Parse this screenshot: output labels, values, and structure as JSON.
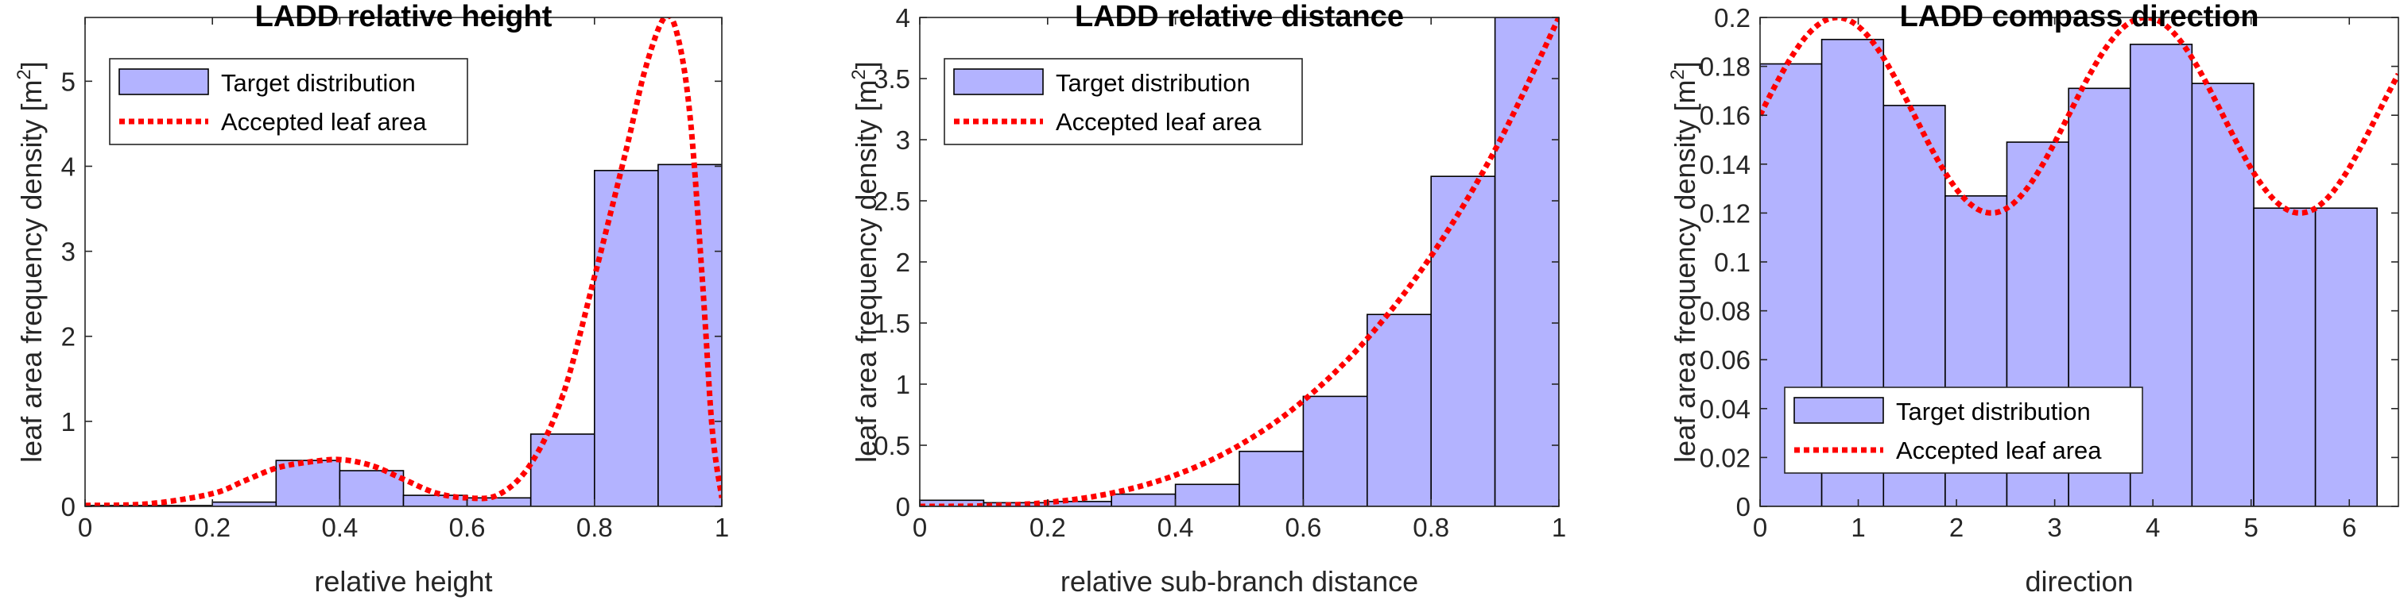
{
  "chart_data": [
    {
      "type": "bar",
      "title": "LADD relative height",
      "xlabel": "relative height",
      "ylabel": "leaf area frequency density [m",
      "ylabel_sup": "2",
      "ylabel_close": "]",
      "xlim": [
        0,
        1
      ],
      "ylim": [
        0,
        5.75
      ],
      "xticks": [
        0,
        0.2,
        0.4,
        0.6,
        0.8,
        1
      ],
      "xtick_labels": [
        "0",
        "0.2",
        "0.4",
        "0.6",
        "0.8",
        "1"
      ],
      "yticks": [
        0,
        1,
        2,
        3,
        4,
        5
      ],
      "ytick_labels": [
        "0",
        "1",
        "2",
        "3",
        "4",
        "5"
      ],
      "legend_position": "top-left",
      "bin_edges": [
        0,
        0.1,
        0.2,
        0.3,
        0.4,
        0.5,
        0.6,
        0.7,
        0.8,
        0.9,
        1.0
      ],
      "series": [
        {
          "name": "Target distribution",
          "kind": "histogram",
          "color": "#b3b3ff",
          "values": [
            0.01,
            0.01,
            0.05,
            0.54,
            0.42,
            0.13,
            0.1,
            0.85,
            3.95,
            4.02
          ]
        },
        {
          "name": "Accepted leaf area",
          "kind": "dotted-line",
          "color": "#ff0000",
          "x": [
            0,
            0.1,
            0.2,
            0.25,
            0.3,
            0.35,
            0.4,
            0.45,
            0.5,
            0.55,
            0.6,
            0.65,
            0.7,
            0.75,
            0.8,
            0.85,
            0.88,
            0.91,
            0.93,
            0.95,
            0.97,
            0.985,
            1.0
          ],
          "y": [
            0.01,
            0.03,
            0.15,
            0.3,
            0.45,
            0.52,
            0.55,
            0.48,
            0.32,
            0.16,
            0.1,
            0.14,
            0.5,
            1.3,
            2.7,
            4.2,
            5.15,
            5.75,
            5.55,
            4.6,
            2.6,
            0.9,
            0.1
          ]
        }
      ]
    },
    {
      "type": "bar",
      "title": "LADD relative distance",
      "xlabel": "relative sub-branch distance",
      "ylabel": "leaf area frequency density [m",
      "ylabel_sup": "2",
      "ylabel_close": "]",
      "xlim": [
        0,
        1
      ],
      "ylim": [
        0,
        4
      ],
      "xticks": [
        0,
        0.2,
        0.4,
        0.6,
        0.8,
        1
      ],
      "xtick_labels": [
        "0",
        "0.2",
        "0.4",
        "0.6",
        "0.8",
        "1"
      ],
      "yticks": [
        0,
        0.5,
        1,
        1.5,
        2,
        2.5,
        3,
        3.5,
        4
      ],
      "ytick_labels": [
        "0",
        "0.5",
        "1",
        "1.5",
        "2",
        "2.5",
        "3",
        "3.5",
        "4"
      ],
      "legend_position": "top-left",
      "bin_edges": [
        0,
        0.1,
        0.2,
        0.3,
        0.4,
        0.5,
        0.6,
        0.7,
        0.8,
        0.9,
        1.0
      ],
      "series": [
        {
          "name": "Target distribution",
          "kind": "histogram",
          "color": "#b3b3ff",
          "values": [
            0.05,
            0.03,
            0.04,
            0.1,
            0.18,
            0.45,
            0.9,
            1.57,
            2.7,
            4.0
          ]
        },
        {
          "name": "Accepted leaf area",
          "kind": "dotted-line",
          "color": "#ff0000",
          "x": [
            0,
            0.1,
            0.2,
            0.3,
            0.4,
            0.5,
            0.6,
            0.7,
            0.8,
            0.9,
            1.0
          ],
          "y": [
            0.0,
            0.004,
            0.032,
            0.108,
            0.256,
            0.5,
            0.864,
            1.372,
            2.048,
            2.916,
            4.0
          ]
        }
      ]
    },
    {
      "type": "bar",
      "title": "LADD compass direction",
      "xlabel": "direction",
      "ylabel": "leaf area frequency density [m",
      "ylabel_sup": "2",
      "ylabel_close": "]",
      "xlim": [
        0,
        6.5
      ],
      "ylim": [
        0,
        0.2
      ],
      "xticks": [
        0,
        1,
        2,
        3,
        4,
        5,
        6
      ],
      "xtick_labels": [
        "0",
        "1",
        "2",
        "3",
        "4",
        "5",
        "6"
      ],
      "yticks": [
        0,
        0.02,
        0.04,
        0.06,
        0.08,
        0.1,
        0.12,
        0.14,
        0.16,
        0.18,
        0.2
      ],
      "ytick_labels": [
        "0",
        "0.02",
        "0.04",
        "0.06",
        "0.08",
        "0.1",
        "0.12",
        "0.14",
        "0.16",
        "0.18",
        "0.2"
      ],
      "legend_position": "bottom-left",
      "bin_edges": [
        0,
        0.628,
        1.257,
        1.885,
        2.513,
        3.142,
        3.77,
        4.398,
        5.027,
        5.655,
        6.283
      ],
      "series": [
        {
          "name": "Target distribution",
          "kind": "histogram",
          "color": "#b3b3ff",
          "values": [
            0.181,
            0.191,
            0.164,
            0.127,
            0.149,
            0.171,
            0.189,
            0.173,
            0.122,
            0.122
          ]
        },
        {
          "name": "Accepted leaf area",
          "kind": "dotted-line",
          "color": "#ff0000",
          "function": "0.16 + 0.04*sin(2*x)",
          "x_range": [
            0,
            6.5
          ]
        }
      ]
    }
  ]
}
